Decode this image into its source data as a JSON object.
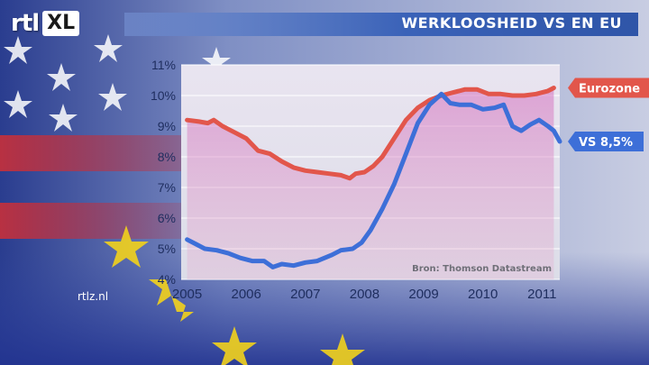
{
  "brand": {
    "logo_rtl": "rtl",
    "logo_xl": "XL",
    "site": "rtlz.nl"
  },
  "header": {
    "title": "WERKLOOSHEID VS EN EU"
  },
  "colors": {
    "eurozone": "#e2564b",
    "vs": "#3d6fd8",
    "accent": "#2f55a8",
    "label_eu_bg": "#e05548",
    "label_vs_bg": "#3d6fd8"
  },
  "chart_data": {
    "type": "line",
    "source": "Bron: Thomson Datastream",
    "x_ticks": [
      "2005",
      "2006",
      "2007",
      "2008",
      "2009",
      "2010",
      "2011"
    ],
    "y_ticks": [
      "4%",
      "5%",
      "6%",
      "7%",
      "8%",
      "9%",
      "10%",
      "11%"
    ],
    "ylim": [
      4,
      11
    ],
    "xlim": [
      2004.9,
      2011.3
    ],
    "grid": true,
    "series": [
      {
        "name": "Eurozone",
        "label": "Eurozone",
        "color": "#e2564b",
        "points": [
          [
            2005.0,
            9.2
          ],
          [
            2005.2,
            9.15
          ],
          [
            2005.35,
            9.1
          ],
          [
            2005.45,
            9.2
          ],
          [
            2005.6,
            9.0
          ],
          [
            2005.8,
            8.8
          ],
          [
            2006.0,
            8.6
          ],
          [
            2006.2,
            8.2
          ],
          [
            2006.4,
            8.1
          ],
          [
            2006.6,
            7.85
          ],
          [
            2006.8,
            7.65
          ],
          [
            2007.0,
            7.55
          ],
          [
            2007.2,
            7.5
          ],
          [
            2007.4,
            7.45
          ],
          [
            2007.6,
            7.4
          ],
          [
            2007.75,
            7.3
          ],
          [
            2007.85,
            7.45
          ],
          [
            2008.0,
            7.5
          ],
          [
            2008.15,
            7.7
          ],
          [
            2008.3,
            8.0
          ],
          [
            2008.5,
            8.6
          ],
          [
            2008.7,
            9.2
          ],
          [
            2008.9,
            9.6
          ],
          [
            2009.1,
            9.85
          ],
          [
            2009.3,
            10.0
          ],
          [
            2009.5,
            10.1
          ],
          [
            2009.7,
            10.2
          ],
          [
            2009.9,
            10.2
          ],
          [
            2010.1,
            10.05
          ],
          [
            2010.3,
            10.05
          ],
          [
            2010.5,
            10.0
          ],
          [
            2010.7,
            10.0
          ],
          [
            2010.9,
            10.05
          ],
          [
            2011.1,
            10.15
          ],
          [
            2011.2,
            10.25
          ]
        ]
      },
      {
        "name": "VS",
        "label": "VS 8,5%",
        "color": "#3d6fd8",
        "points": [
          [
            2005.0,
            5.3
          ],
          [
            2005.15,
            5.15
          ],
          [
            2005.3,
            5.0
          ],
          [
            2005.5,
            4.95
          ],
          [
            2005.7,
            4.85
          ],
          [
            2005.9,
            4.7
          ],
          [
            2006.1,
            4.6
          ],
          [
            2006.3,
            4.6
          ],
          [
            2006.45,
            4.4
          ],
          [
            2006.6,
            4.5
          ],
          [
            2006.8,
            4.45
          ],
          [
            2007.0,
            4.55
          ],
          [
            2007.2,
            4.6
          ],
          [
            2007.45,
            4.8
          ],
          [
            2007.6,
            4.95
          ],
          [
            2007.8,
            5.0
          ],
          [
            2007.95,
            5.2
          ],
          [
            2008.1,
            5.6
          ],
          [
            2008.3,
            6.3
          ],
          [
            2008.5,
            7.1
          ],
          [
            2008.7,
            8.1
          ],
          [
            2008.9,
            9.1
          ],
          [
            2009.1,
            9.7
          ],
          [
            2009.3,
            10.05
          ],
          [
            2009.45,
            9.75
          ],
          [
            2009.6,
            9.7
          ],
          [
            2009.8,
            9.7
          ],
          [
            2010.0,
            9.55
          ],
          [
            2010.2,
            9.6
          ],
          [
            2010.35,
            9.7
          ],
          [
            2010.5,
            9.0
          ],
          [
            2010.65,
            8.85
          ],
          [
            2010.8,
            9.05
          ],
          [
            2010.95,
            9.2
          ],
          [
            2011.1,
            9.0
          ],
          [
            2011.2,
            8.85
          ],
          [
            2011.3,
            8.5
          ]
        ]
      }
    ]
  }
}
